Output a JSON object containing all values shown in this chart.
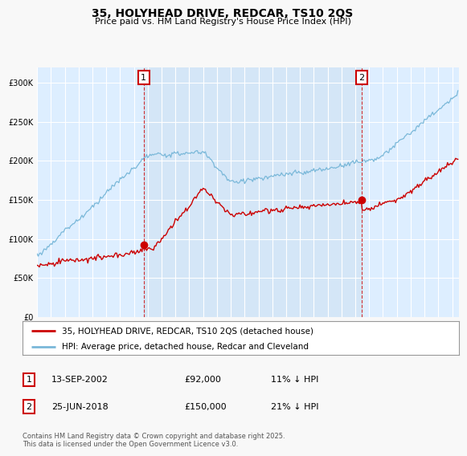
{
  "title": "35, HOLYHEAD DRIVE, REDCAR, TS10 2QS",
  "subtitle": "Price paid vs. HM Land Registry's House Price Index (HPI)",
  "ylim": [
    0,
    320000
  ],
  "yticks": [
    0,
    50000,
    100000,
    150000,
    200000,
    250000,
    300000
  ],
  "ytick_labels": [
    "£0",
    "£50K",
    "£100K",
    "£150K",
    "£200K",
    "£250K",
    "£300K"
  ],
  "legend_line1": "35, HOLYHEAD DRIVE, REDCAR, TS10 2QS (detached house)",
  "legend_line2": "HPI: Average price, detached house, Redcar and Cleveland",
  "annotation1_date": "13-SEP-2002",
  "annotation1_value": "£92,000",
  "annotation1_note": "11% ↓ HPI",
  "annotation2_date": "25-JUN-2018",
  "annotation2_value": "£150,000",
  "annotation2_note": "21% ↓ HPI",
  "footer": "Contains HM Land Registry data © Crown copyright and database right 2025.\nThis data is licensed under the Open Government Licence v3.0.",
  "hpi_color": "#7ab8d9",
  "price_color": "#cc0000",
  "background_color": "#f8f8f8",
  "plot_bg_color": "#ddeeff",
  "grid_color": "#ffffff",
  "sale1_year": 2002.708,
  "sale2_year": 2018.458,
  "xstart": 1995,
  "xend": 2025.5
}
